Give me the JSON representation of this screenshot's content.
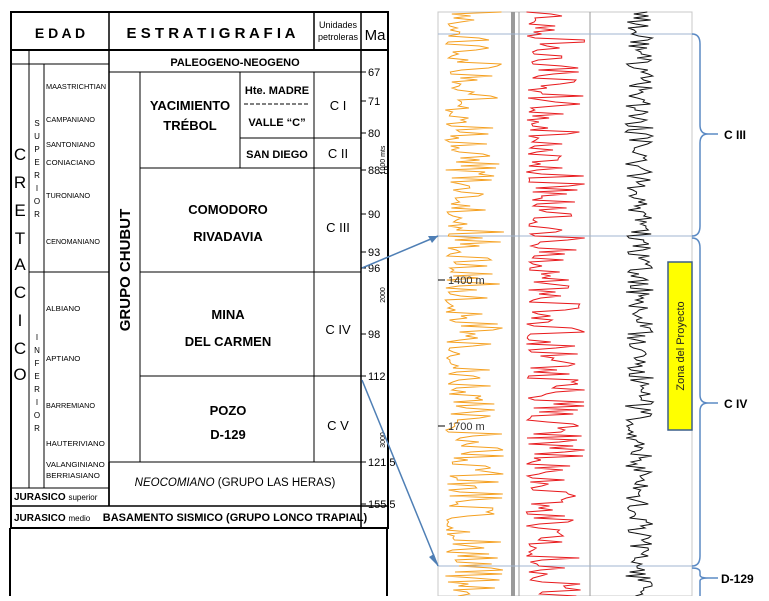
{
  "headers": {
    "edad": "E D A D",
    "estratigrafia": "E S T R A T I G R A F I A",
    "unidades_1": "Unidades",
    "unidades_2": "petroleras",
    "ma": "Ma"
  },
  "era_letters": [
    "C",
    "R",
    "E",
    "T",
    "A",
    "C",
    "I",
    "C",
    "O"
  ],
  "superior_letters": [
    "S",
    "U",
    "P",
    "E",
    "R",
    "I",
    "O",
    "R"
  ],
  "inferior_letters": [
    "I",
    "N",
    "F",
    "E",
    "R",
    "I",
    "O",
    "R"
  ],
  "stages": [
    "MAASTRICHTIAN",
    "CAMPANIANO",
    "SANTONIANO",
    "CONIACIANO",
    "TURONIANO",
    "CENOMANIANO",
    "ALBIANO",
    "APTIANO",
    "BARREMIANO",
    "HAUTERIVIANO",
    "VALANGINIANO",
    "BERRIASIANO"
  ],
  "jurassic": {
    "sup_name": "JURASICO",
    "sup_suffix": "superior",
    "med_name": "JURASICO",
    "med_suffix": "medio"
  },
  "paleogeno": "PALEOGENO-NEOGENO",
  "grupo_chubut": "GRUPO CHUBUT",
  "formations": {
    "yacimiento_1": "YACIMIENTO",
    "yacimiento_2": "TRÉBOL",
    "hte_madre": "Hte. MADRE",
    "valle_c": "VALLE “C”",
    "san_diego": "SAN DIEGO",
    "comodoro_1": "COMODORO",
    "comodoro_2": "RIVADAVIA",
    "mina_1": "MINA",
    "mina_2": "DEL CARMEN",
    "pozo_1": "POZO",
    "pozo_2": "D-129",
    "neocomiano_1": "NEOCOMIANO",
    "neocomiano_2": "(GRUPO LAS HERAS)",
    "basamento": "BASAMENTO SISMICO (GRUPO LONCO TRAPIAL)"
  },
  "units": [
    "C I",
    "C II",
    "C III",
    "C IV",
    "C V"
  ],
  "ma_ticks": [
    "67",
    "71",
    "80",
    "88.5",
    "90",
    "93",
    "96",
    "98",
    "112",
    "121.5",
    "155.5"
  ],
  "depth_scale": [
    "1000 mts",
    "2000",
    "3000"
  ],
  "log": {
    "depth_1400": "1400 m",
    "depth_1700": "1700 m",
    "zona": "Zona del Proyecto",
    "zone_c3": "C III",
    "zone_c4": "C IV",
    "zone_d129": "D-129"
  },
  "colors": {
    "orange": "#f5a020",
    "red": "#e8191c",
    "black": "#111111",
    "connector": "#4f7fb5",
    "zona_fill": "#ffff00",
    "zona_border": "#3a5f8a",
    "bracket": "#5b8ac4",
    "gray_band": "#909090"
  }
}
